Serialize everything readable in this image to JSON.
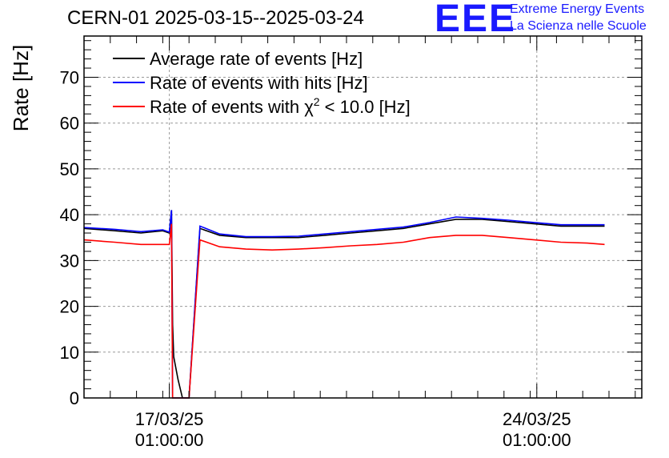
{
  "header": {
    "title": "CERN-01 2025-03-15--2025-03-24",
    "logo_text": "EEE",
    "logo_line1": "Extreme Energy Events",
    "logo_line2": "La Scienza nelle Scuole",
    "logo_color": "#1a1aff"
  },
  "chart_data": {
    "type": "line",
    "title": "CERN-01 2025-03-15--2025-03-24",
    "xlabel": "",
    "ylabel": "Rate [Hz]",
    "ylim": [
      0,
      79
    ],
    "yticks": [
      0,
      10,
      20,
      30,
      40,
      50,
      60,
      70
    ],
    "xlim": [
      "2025-03-15T10:00",
      "2025-03-26T01:00"
    ],
    "xticks": [
      {
        "date": "2025-03-17T01:00",
        "label_line1": "17/03/25",
        "label_line2": "01:00:00"
      },
      {
        "date": "2025-03-24T01:00",
        "label_line1": "24/03/25",
        "label_line2": "01:00:00"
      }
    ],
    "grid": true,
    "legend_position": "top-left",
    "series": [
      {
        "name": "Average rate of events [Hz]",
        "color": "#000000",
        "points": [
          [
            "2025-03-15T10:00",
            37
          ],
          [
            "2025-03-16T00:00",
            36.5
          ],
          [
            "2025-03-16T12:00",
            36
          ],
          [
            "2025-03-16T22:00",
            36.5
          ],
          [
            "2025-03-17T01:00",
            36
          ],
          [
            "2025-03-17T02:00",
            41
          ],
          [
            "2025-03-17T02:30",
            16
          ],
          [
            "2025-03-17T03:00",
            9
          ],
          [
            "2025-03-17T05:00",
            4
          ],
          [
            "2025-03-17T07:00",
            0
          ],
          [
            "2025-03-17T10:00",
            0
          ],
          [
            "2025-03-17T15:00",
            37
          ],
          [
            "2025-03-18T00:00",
            35.5
          ],
          [
            "2025-03-18T12:00",
            35
          ],
          [
            "2025-03-19T00:00",
            35
          ],
          [
            "2025-03-19T12:00",
            35
          ],
          [
            "2025-03-20T00:00",
            35.5
          ],
          [
            "2025-03-20T12:00",
            36
          ],
          [
            "2025-03-21T00:00",
            36.5
          ],
          [
            "2025-03-21T12:00",
            37
          ],
          [
            "2025-03-22T00:00",
            38
          ],
          [
            "2025-03-22T12:00",
            39
          ],
          [
            "2025-03-23T00:00",
            39
          ],
          [
            "2025-03-23T12:00",
            38.5
          ],
          [
            "2025-03-24T00:00",
            38
          ],
          [
            "2025-03-24T12:00",
            37.5
          ],
          [
            "2025-03-25T00:00",
            37.5
          ],
          [
            "2025-03-25T08:00",
            37.5
          ]
        ]
      },
      {
        "name": "Rate of events with hits [Hz]",
        "color": "#0000ff",
        "points": [
          [
            "2025-03-15T10:00",
            37.2
          ],
          [
            "2025-03-16T00:00",
            36.8
          ],
          [
            "2025-03-16T12:00",
            36.3
          ],
          [
            "2025-03-16T22:00",
            36.7
          ],
          [
            "2025-03-17T01:00",
            36.2
          ],
          [
            "2025-03-17T02:00",
            41
          ],
          [
            "2025-03-17T02:30",
            0
          ],
          [
            "2025-03-17T10:00",
            0
          ],
          [
            "2025-03-17T15:00",
            37.5
          ],
          [
            "2025-03-18T00:00",
            35.8
          ],
          [
            "2025-03-18T12:00",
            35.2
          ],
          [
            "2025-03-19T00:00",
            35.2
          ],
          [
            "2025-03-19T12:00",
            35.3
          ],
          [
            "2025-03-20T00:00",
            35.8
          ],
          [
            "2025-03-20T12:00",
            36.3
          ],
          [
            "2025-03-21T00:00",
            36.8
          ],
          [
            "2025-03-21T12:00",
            37.3
          ],
          [
            "2025-03-22T00:00",
            38.3
          ],
          [
            "2025-03-22T12:00",
            39.5
          ],
          [
            "2025-03-23T00:00",
            39.2
          ],
          [
            "2025-03-23T12:00",
            38.8
          ],
          [
            "2025-03-24T00:00",
            38.3
          ],
          [
            "2025-03-24T12:00",
            37.8
          ],
          [
            "2025-03-25T00:00",
            37.8
          ],
          [
            "2025-03-25T08:00",
            37.8
          ]
        ]
      },
      {
        "name": "Rate of events with χ² < 10.0 [Hz]",
        "name_main": "Rate of events with χ",
        "name_sup": "2",
        "name_tail": " < 10.0 [Hz]",
        "color": "#ff0000",
        "points": [
          [
            "2025-03-15T10:00",
            34.5
          ],
          [
            "2025-03-16T00:00",
            34
          ],
          [
            "2025-03-16T12:00",
            33.5
          ],
          [
            "2025-03-16T22:00",
            33.5
          ],
          [
            "2025-03-17T01:00",
            33.5
          ],
          [
            "2025-03-17T02:00",
            38
          ],
          [
            "2025-03-17T02:30",
            0
          ],
          [
            "2025-03-17T10:00",
            0
          ],
          [
            "2025-03-17T15:00",
            34.5
          ],
          [
            "2025-03-18T00:00",
            33
          ],
          [
            "2025-03-18T12:00",
            32.5
          ],
          [
            "2025-03-19T00:00",
            32.3
          ],
          [
            "2025-03-19T12:00",
            32.5
          ],
          [
            "2025-03-20T00:00",
            32.8
          ],
          [
            "2025-03-20T12:00",
            33.2
          ],
          [
            "2025-03-21T00:00",
            33.5
          ],
          [
            "2025-03-21T12:00",
            34
          ],
          [
            "2025-03-22T00:00",
            35
          ],
          [
            "2025-03-22T12:00",
            35.5
          ],
          [
            "2025-03-23T00:00",
            35.5
          ],
          [
            "2025-03-23T12:00",
            35
          ],
          [
            "2025-03-24T00:00",
            34.5
          ],
          [
            "2025-03-24T12:00",
            34
          ],
          [
            "2025-03-25T00:00",
            33.8
          ],
          [
            "2025-03-25T08:00",
            33.5
          ]
        ]
      }
    ]
  }
}
